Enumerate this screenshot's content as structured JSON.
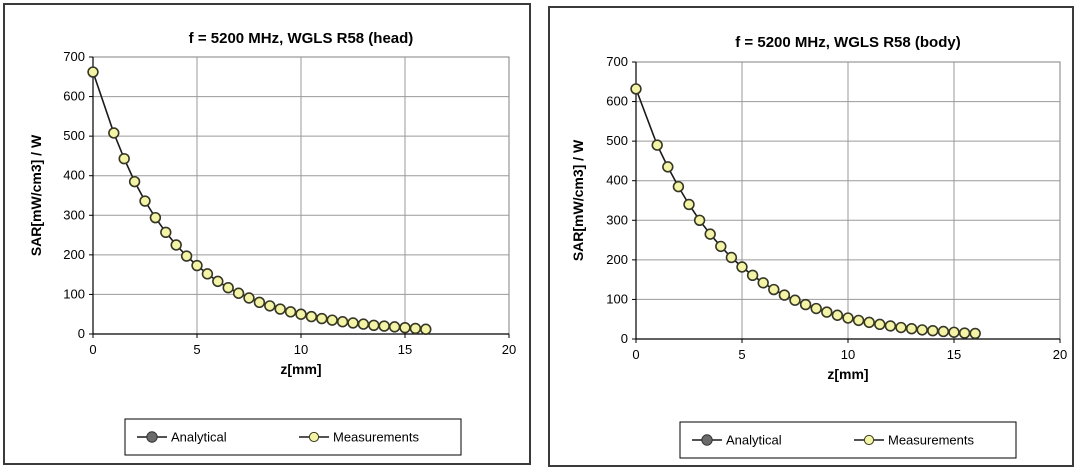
{
  "chart_data": [
    {
      "type": "line",
      "title": "f = 5200 MHz, WGLS R58 (head)",
      "xlabel": "z[mm]",
      "ylabel": "SAR[mW/cm3] / W",
      "xlim": [
        0,
        20
      ],
      "ylim": [
        0,
        700
      ],
      "xticks": [
        "0",
        "5",
        "10",
        "15",
        "20"
      ],
      "yticks": [
        "0",
        "100",
        "200",
        "300",
        "400",
        "500",
        "600",
        "700"
      ],
      "grid": true,
      "legend": "bottom",
      "series": [
        {
          "name": "Analytical",
          "color": "#6a6a6a",
          "x": [
            0,
            1,
            1.5,
            2,
            2.5,
            3,
            3.5,
            4,
            4.5,
            5,
            5.5,
            6,
            6.5,
            7,
            7.5,
            8,
            8.5,
            9,
            9.5,
            10,
            10.5,
            11,
            11.5,
            12,
            12.5,
            13,
            13.5,
            14,
            14.5,
            15,
            15.5,
            16
          ],
          "values": [
            662,
            508,
            443,
            385,
            336,
            294,
            257,
            225,
            197,
            173,
            152,
            133,
            117,
            103,
            91,
            80,
            71,
            63,
            56,
            50,
            44,
            39,
            35,
            31,
            28,
            25,
            22,
            20,
            18,
            16,
            14,
            12
          ]
        },
        {
          "name": "Measurements",
          "color": "#f4f4a8",
          "x": [
            0,
            1,
            1.5,
            2,
            2.5,
            3,
            3.5,
            4,
            4.5,
            5,
            5.5,
            6,
            6.5,
            7,
            7.5,
            8,
            8.5,
            9,
            9.5,
            10,
            10.5,
            11,
            11.5,
            12,
            12.5,
            13,
            13.5,
            14,
            14.5,
            15,
            15.5,
            16
          ],
          "values": [
            662,
            508,
            443,
            385,
            336,
            294,
            257,
            225,
            197,
            173,
            152,
            133,
            117,
            103,
            91,
            80,
            71,
            63,
            56,
            50,
            44,
            39,
            35,
            31,
            28,
            25,
            22,
            20,
            18,
            16,
            14,
            12
          ]
        }
      ]
    },
    {
      "type": "line",
      "title": "f = 5200 MHz, WGLS R58 (body)",
      "xlabel": "z[mm]",
      "ylabel": "SAR[mW/cm3] / W",
      "xlim": [
        0,
        20
      ],
      "ylim": [
        0,
        700
      ],
      "xticks": [
        "0",
        "5",
        "10",
        "15",
        "20"
      ],
      "yticks": [
        "0",
        "100",
        "200",
        "300",
        "400",
        "500",
        "600",
        "700"
      ],
      "grid": true,
      "legend": "bottom",
      "series": [
        {
          "name": "Analytical",
          "color": "#6a6a6a",
          "x": [
            0,
            1,
            1.5,
            2,
            2.5,
            3,
            3.5,
            4,
            4.5,
            5,
            5.5,
            6,
            6.5,
            7,
            7.5,
            8,
            8.5,
            9,
            9.5,
            10,
            10.5,
            11,
            11.5,
            12,
            12.5,
            13,
            13.5,
            14,
            14.5,
            15,
            15.5,
            16
          ],
          "values": [
            632,
            490,
            435,
            385,
            340,
            300,
            265,
            234,
            206,
            182,
            161,
            142,
            125,
            111,
            98,
            87,
            77,
            68,
            60,
            53,
            47,
            42,
            37,
            33,
            29,
            26,
            23,
            21,
            19,
            17,
            15,
            14
          ]
        },
        {
          "name": "Measurements",
          "color": "#f4f4a8",
          "x": [
            0,
            1,
            1.5,
            2,
            2.5,
            3,
            3.5,
            4,
            4.5,
            5,
            5.5,
            6,
            6.5,
            7,
            7.5,
            8,
            8.5,
            9,
            9.5,
            10,
            10.5,
            11,
            11.5,
            12,
            12.5,
            13,
            13.5,
            14,
            14.5,
            15,
            15.5,
            16
          ],
          "values": [
            632,
            490,
            435,
            385,
            340,
            300,
            265,
            234,
            206,
            182,
            161,
            142,
            125,
            111,
            98,
            87,
            77,
            68,
            60,
            53,
            47,
            42,
            37,
            33,
            29,
            26,
            23,
            21,
            19,
            17,
            15,
            14
          ]
        }
      ]
    }
  ]
}
